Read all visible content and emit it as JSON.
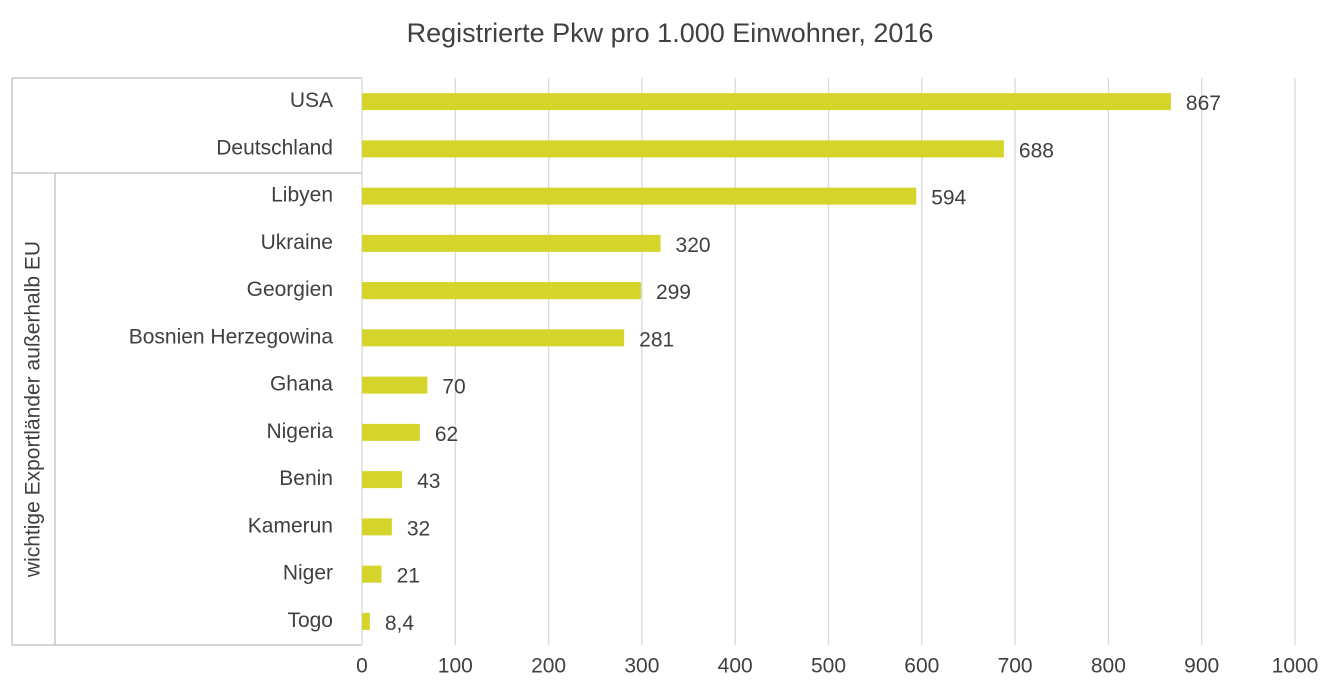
{
  "chart_data": {
    "type": "bar",
    "orientation": "horizontal",
    "title": "Registrierte Pkw pro 1.000 Einwohner, 2016",
    "group_label": "wichtige Exportländer außerhalb EU",
    "categories": [
      "USA",
      "Deutschland",
      "Libyen",
      "Ukraine",
      "Georgien",
      "Bosnien Herzegowina",
      "Ghana",
      "Nigeria",
      "Benin",
      "Kamerun",
      "Niger",
      "Togo"
    ],
    "values": [
      867,
      688,
      594,
      320,
      299,
      281,
      70,
      62,
      43,
      32,
      21,
      8.4
    ],
    "value_labels": [
      "867",
      "688",
      "594",
      "320",
      "299",
      "281",
      "70",
      "62",
      "43",
      "32",
      "21",
      "8,4"
    ],
    "color": "#d4d42b",
    "xlim": [
      0,
      1000
    ],
    "xticks": [
      0,
      100,
      200,
      300,
      400,
      500,
      600,
      700,
      800,
      900,
      1000
    ],
    "grid": true
  }
}
